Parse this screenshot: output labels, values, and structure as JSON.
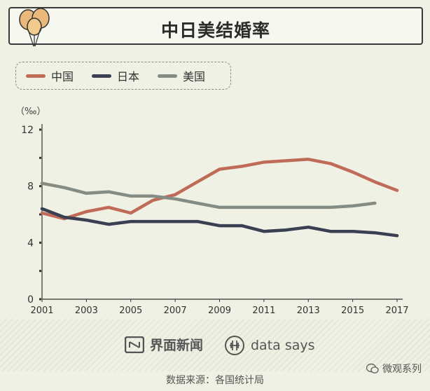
{
  "title": "中日美结婚率",
  "legend": [
    {
      "name": "中国",
      "color": "#c06b57"
    },
    {
      "name": "日本",
      "color": "#3b3f52"
    },
    {
      "name": "美国",
      "color": "#858c84"
    }
  ],
  "chart_data": {
    "type": "line",
    "title": "中日美结婚率",
    "ylabel": "（‰）",
    "xlabel": "",
    "ylim": [
      0,
      12
    ],
    "xlim": [
      2001,
      2017
    ],
    "y_ticks": [
      "0",
      "4",
      "8",
      "12"
    ],
    "x_ticks": [
      "2001",
      "2003",
      "2005",
      "2007",
      "2009",
      "2011",
      "2013",
      "2015",
      "2017"
    ],
    "grid": false,
    "legend_position": "top-left",
    "x": [
      2001,
      2002,
      2003,
      2004,
      2005,
      2006,
      2007,
      2008,
      2009,
      2010,
      2011,
      2012,
      2013,
      2014,
      2015,
      2016,
      2017
    ],
    "series": [
      {
        "name": "中国",
        "color": "#c06b57",
        "values": [
          6.1,
          5.7,
          6.2,
          6.5,
          6.1,
          7.0,
          7.4,
          8.3,
          9.2,
          9.4,
          9.7,
          9.8,
          9.9,
          9.6,
          9.0,
          8.3,
          7.7
        ]
      },
      {
        "name": "日本",
        "color": "#3b3f52",
        "values": [
          6.4,
          5.8,
          5.6,
          5.3,
          5.5,
          5.5,
          5.5,
          5.5,
          5.2,
          5.2,
          4.8,
          4.9,
          5.1,
          4.8,
          4.8,
          4.7,
          4.5
        ]
      },
      {
        "name": "美国",
        "color": "#858c84",
        "values": [
          8.2,
          7.9,
          7.5,
          7.6,
          7.3,
          7.3,
          7.1,
          6.8,
          6.5,
          6.5,
          6.5,
          6.5,
          6.5,
          6.5,
          6.6,
          6.8,
          null
        ]
      }
    ]
  },
  "footer": {
    "brand_jiemian": "界面新闻",
    "brand_datasays": "data says",
    "source": "数据来源：各国统计局",
    "wechat_account": "微观系列"
  }
}
